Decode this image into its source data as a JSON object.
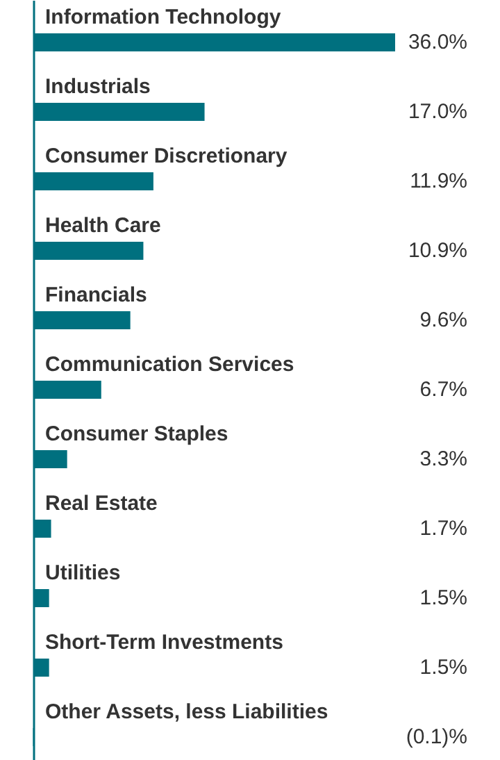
{
  "chart_data": {
    "type": "bar",
    "orientation": "horizontal",
    "categories": [
      "Information Technology",
      "Industrials",
      "Consumer Discretionary",
      "Health Care",
      "Financials",
      "Communication Services",
      "Consumer Staples",
      "Real Estate",
      "Utilities",
      "Short-Term Investments",
      "Other Assets, less Liabilities"
    ],
    "values": [
      36.0,
      17.0,
      11.9,
      10.9,
      9.6,
      6.7,
      3.3,
      1.7,
      1.5,
      1.5,
      -0.1
    ],
    "value_labels": [
      "36.0%",
      "17.0%",
      "11.9%",
      "10.9%",
      "9.6%",
      "6.7%",
      "3.3%",
      "1.7%",
      "1.5%",
      "1.5%",
      "(0.1)%"
    ],
    "color": "#00707f"
  }
}
